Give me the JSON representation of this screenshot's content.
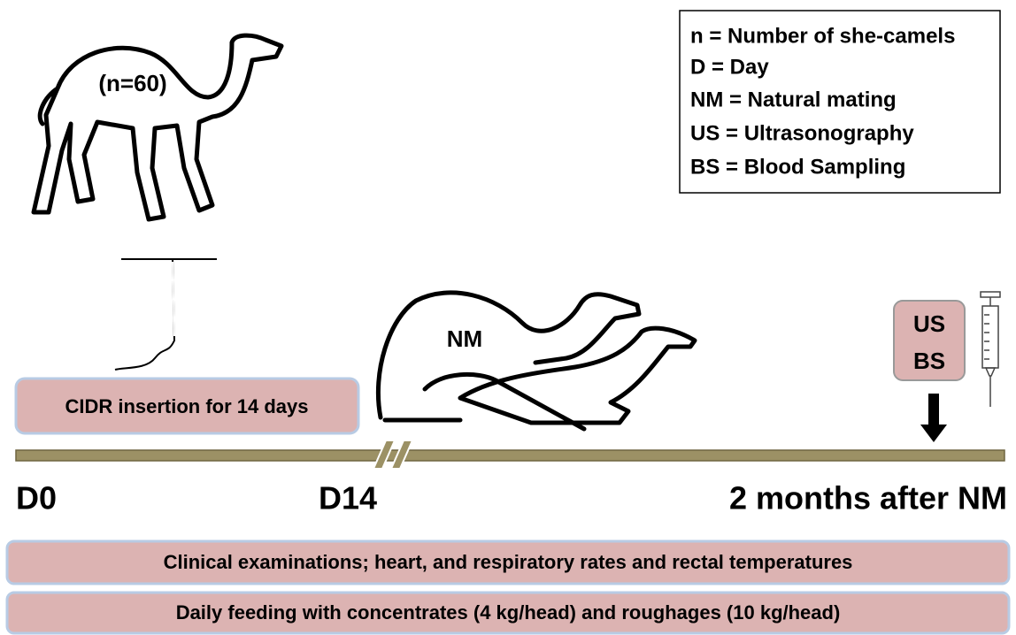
{
  "legend": {
    "items": [
      "n = Number of she-camels",
      "D = Day",
      "NM = Natural mating",
      "US = Ultrasonography",
      "BS = Blood Sampling"
    ]
  },
  "camel_label": "(n=60)",
  "cidr_box": "CIDR insertion for 14 days",
  "mating_label": "NM",
  "us_bs_box": [
    "US",
    "BS"
  ],
  "timeline": {
    "labels": [
      "D0",
      "D14",
      "2 months after NM"
    ]
  },
  "bottom_boxes": [
    "Clinical examinations; heart, and respiratory rates and rectal temperatures",
    "Daily feeding with concentrates (4 kg/head) and roughages (10 kg/head)"
  ]
}
